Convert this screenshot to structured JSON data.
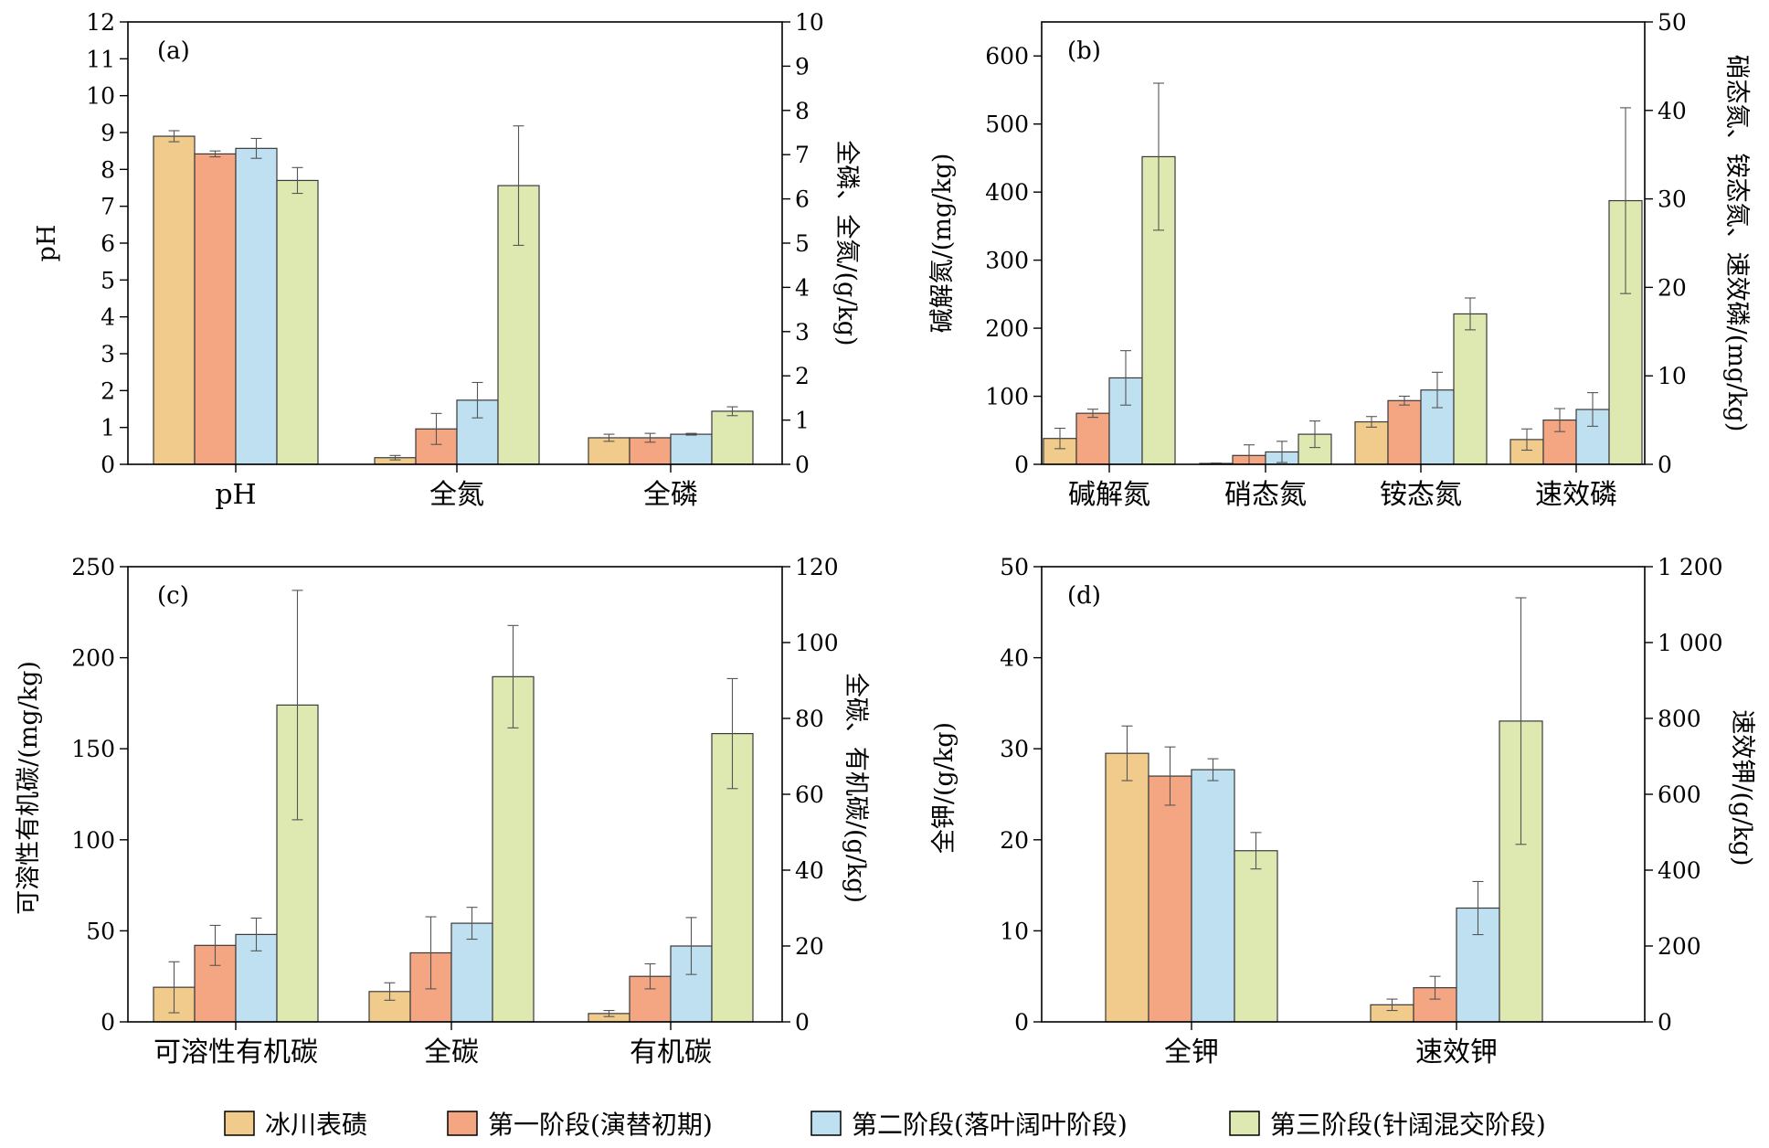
{
  "legend": {
    "items": [
      {
        "label": "冰川表碛",
        "color": "#F1CB8C"
      },
      {
        "label": "第一阶段(演替初期)",
        "color": "#F4A683"
      },
      {
        "label": "第二阶段(落叶阔叶阶段)",
        "color": "#BEE0F0"
      },
      {
        "label": "第三阶段(针阔混交阶段)",
        "color": "#DDE9B1"
      }
    ]
  },
  "chart_data": [
    {
      "type": "bar",
      "panel_label": "(a)",
      "categories": [
        "pH",
        "全氮",
        "全磷"
      ],
      "ylabel": "pH",
      "ylim": [
        0,
        12
      ],
      "yticks": [
        "0",
        "1",
        "2",
        "3",
        "4",
        "5",
        "6",
        "7",
        "8",
        "9",
        "10",
        "11",
        "12"
      ],
      "y2label": "全磷、全氮/(g/kg)",
      "y2lim": [
        0,
        10
      ],
      "y2ticks": [
        "0",
        "1",
        "2",
        "3",
        "4",
        "5",
        "6",
        "7",
        "8",
        "9",
        "10"
      ],
      "series_axis": [
        "left",
        "right",
        "right"
      ],
      "series": [
        {
          "name": "冰川表碛",
          "values": [
            8.9,
            0.15,
            0.6
          ],
          "errors": [
            0.15,
            0.05,
            0.08
          ]
        },
        {
          "name": "第一阶段(演替初期)",
          "values": [
            8.42,
            0.8,
            0.6
          ],
          "errors": [
            0.08,
            0.35,
            0.1
          ]
        },
        {
          "name": "第二阶段(落叶阔叶阶段)",
          "values": [
            8.57,
            1.45,
            0.68
          ],
          "errors": [
            0.27,
            0.4,
            0.02
          ]
        },
        {
          "name": "第三阶段(针阔混交阶段)",
          "values": [
            7.7,
            6.3,
            1.2
          ],
          "errors": [
            0.35,
            1.35,
            0.1
          ]
        }
      ]
    },
    {
      "type": "bar",
      "panel_label": "(b)",
      "categories": [
        "碱解氮",
        "硝态氮",
        "铵态氮",
        "速效磷"
      ],
      "ylabel": "碱解氮/(mg/kg)",
      "ylim": [
        0,
        650
      ],
      "yticks": [
        "0",
        "100",
        "200",
        "300",
        "400",
        "500",
        "600"
      ],
      "y2label": "硝态氮、铵态氮、速效磷/(mg/kg)",
      "y2lim": [
        0,
        50
      ],
      "y2ticks": [
        "0",
        "10",
        "20",
        "30",
        "40",
        "50"
      ],
      "series_axis": [
        "left",
        "right",
        "right",
        "right"
      ],
      "series": [
        {
          "name": "冰川表碛",
          "values": [
            38,
            0.1,
            4.8,
            2.8
          ],
          "errors": [
            15,
            0.05,
            0.6,
            1.2
          ]
        },
        {
          "name": "第一阶段(演替初期)",
          "values": [
            75,
            1.0,
            7.2,
            5.0
          ],
          "errors": [
            6,
            1.2,
            0.5,
            1.3
          ]
        },
        {
          "name": "第二阶段(落叶阔叶阶段)",
          "values": [
            127,
            1.4,
            8.4,
            6.2
          ],
          "errors": [
            40,
            1.2,
            2.0,
            1.9
          ]
        },
        {
          "name": "第三阶段(针阔混交阶段)",
          "values": [
            452,
            3.4,
            17.0,
            29.8
          ],
          "errors": [
            108,
            1.5,
            1.8,
            10.5
          ]
        }
      ]
    },
    {
      "type": "bar",
      "panel_label": "(c)",
      "categories": [
        "可溶性有机碳",
        "全碳",
        "有机碳"
      ],
      "ylabel": "可溶性有机碳/(mg/kg)",
      "ylim": [
        0,
        250
      ],
      "yticks": [
        "0",
        "50",
        "100",
        "150",
        "200",
        "250"
      ],
      "y2label": "全碳、有机碳/(g/kg)",
      "y2lim": [
        0,
        120
      ],
      "y2ticks": [
        "0",
        "20",
        "40",
        "60",
        "80",
        "100",
        "120"
      ],
      "series_axis": [
        "left",
        "right",
        "right"
      ],
      "series": [
        {
          "name": "冰川表碛",
          "values": [
            19,
            8.0,
            2.2
          ],
          "errors": [
            14,
            2.3,
            0.8
          ]
        },
        {
          "name": "第一阶段(演替初期)",
          "values": [
            42,
            18.2,
            12.0
          ],
          "errors": [
            11,
            9.5,
            3.3
          ]
        },
        {
          "name": "第二阶段(落叶阔叶阶段)",
          "values": [
            48,
            26.0,
            20.0
          ],
          "errors": [
            9,
            4.2,
            7.5
          ]
        },
        {
          "name": "第三阶段(针阔混交阶段)",
          "values": [
            174,
            91.0,
            76.0
          ],
          "errors": [
            63,
            13.5,
            14.5
          ]
        }
      ]
    },
    {
      "type": "bar",
      "panel_label": "(d)",
      "categories": [
        "全钾",
        "速效钾"
      ],
      "ylabel": "全钾/(g/kg)",
      "ylim": [
        0,
        50
      ],
      "yticks": [
        "0",
        "10",
        "20",
        "30",
        "40",
        "50"
      ],
      "y2label": "速效钾/(g/kg)",
      "y2lim": [
        0,
        1200
      ],
      "y2ticks": [
        "0",
        "200",
        "400",
        "600",
        "800",
        "1 000",
        "1 200"
      ],
      "series_axis": [
        "left",
        "right"
      ],
      "series": [
        {
          "name": "冰川表碛",
          "values": [
            29.5,
            45
          ],
          "errors": [
            3.0,
            15
          ]
        },
        {
          "name": "第一阶段(演替初期)",
          "values": [
            27.0,
            90
          ],
          "errors": [
            3.2,
            30
          ]
        },
        {
          "name": "第二阶段(落叶阔叶阶段)",
          "values": [
            27.7,
            300
          ],
          "errors": [
            1.2,
            70
          ]
        },
        {
          "name": "第三阶段(针阔混交阶段)",
          "values": [
            18.8,
            793
          ],
          "errors": [
            2.0,
            325
          ]
        }
      ]
    }
  ]
}
